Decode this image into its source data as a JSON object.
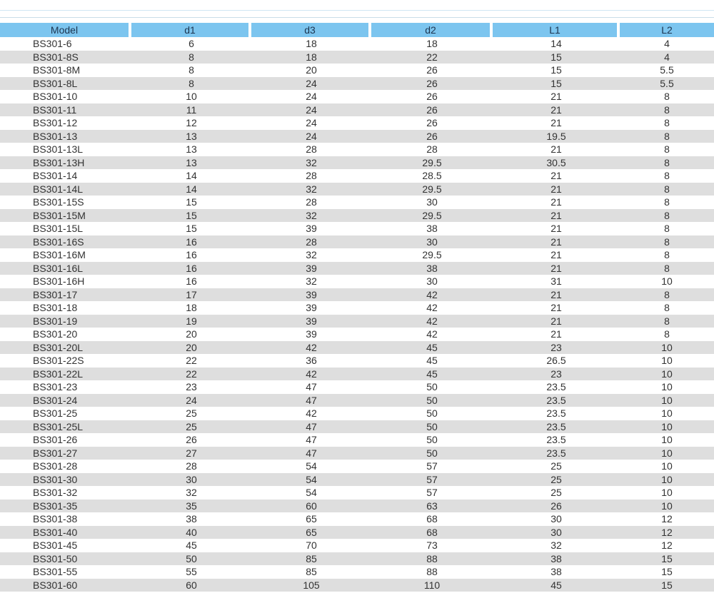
{
  "table": {
    "columns": [
      "Model",
      "d1",
      "d3",
      "d2",
      "L1",
      "L2"
    ],
    "rows": [
      [
        "BS301-6",
        "6",
        "18",
        "18",
        "14",
        "4"
      ],
      [
        "BS301-8S",
        "8",
        "18",
        "22",
        "15",
        "4"
      ],
      [
        "BS301-8M",
        "8",
        "20",
        "26",
        "15",
        "5.5"
      ],
      [
        "BS301-8L",
        "8",
        "24",
        "26",
        "15",
        "5.5"
      ],
      [
        "BS301-10",
        "10",
        "24",
        "26",
        "21",
        "8"
      ],
      [
        "BS301-11",
        "11",
        "24",
        "26",
        "21",
        "8"
      ],
      [
        "BS301-12",
        "12",
        "24",
        "26",
        "21",
        "8"
      ],
      [
        "BS301-13",
        "13",
        "24",
        "26",
        "19.5",
        "8"
      ],
      [
        "BS301-13L",
        "13",
        "28",
        "28",
        "21",
        "8"
      ],
      [
        "BS301-13H",
        "13",
        "32",
        "29.5",
        "30.5",
        "8"
      ],
      [
        "BS301-14",
        "14",
        "28",
        "28.5",
        "21",
        "8"
      ],
      [
        "BS301-14L",
        "14",
        "32",
        "29.5",
        "21",
        "8"
      ],
      [
        "BS301-15S",
        "15",
        "28",
        "30",
        "21",
        "8"
      ],
      [
        "BS301-15M",
        "15",
        "32",
        "29.5",
        "21",
        "8"
      ],
      [
        "BS301-15L",
        "15",
        "39",
        "38",
        "21",
        "8"
      ],
      [
        "BS301-16S",
        "16",
        "28",
        "30",
        "21",
        "8"
      ],
      [
        "BS301-16M",
        "16",
        "32",
        "29.5",
        "21",
        "8"
      ],
      [
        "BS301-16L",
        "16",
        "39",
        "38",
        "21",
        "8"
      ],
      [
        "BS301-16H",
        "16",
        "32",
        "30",
        "31",
        "10"
      ],
      [
        "BS301-17",
        "17",
        "39",
        "42",
        "21",
        "8"
      ],
      [
        "BS301-18",
        "18",
        "39",
        "42",
        "21",
        "8"
      ],
      [
        "BS301-19",
        "19",
        "39",
        "42",
        "21",
        "8"
      ],
      [
        "BS301-20",
        "20",
        "39",
        "42",
        "21",
        "8"
      ],
      [
        "BS301-20L",
        "20",
        "42",
        "45",
        "23",
        "10"
      ],
      [
        "BS301-22S",
        "22",
        "36",
        "45",
        "26.5",
        "10"
      ],
      [
        "BS301-22L",
        "22",
        "42",
        "45",
        "23",
        "10"
      ],
      [
        "BS301-23",
        "23",
        "47",
        "50",
        "23.5",
        "10"
      ],
      [
        "BS301-24",
        "24",
        "47",
        "50",
        "23.5",
        "10"
      ],
      [
        "BS301-25",
        "25",
        "42",
        "50",
        "23.5",
        "10"
      ],
      [
        "BS301-25L",
        "25",
        "47",
        "50",
        "23.5",
        "10"
      ],
      [
        "BS301-26",
        "26",
        "47",
        "50",
        "23.5",
        "10"
      ],
      [
        "BS301-27",
        "27",
        "47",
        "50",
        "23.5",
        "10"
      ],
      [
        "BS301-28",
        "28",
        "54",
        "57",
        "25",
        "10"
      ],
      [
        "BS301-30",
        "30",
        "54",
        "57",
        "25",
        "10"
      ],
      [
        "BS301-32",
        "32",
        "54",
        "57",
        "25",
        "10"
      ],
      [
        "BS301-35",
        "35",
        "60",
        "63",
        "26",
        "10"
      ],
      [
        "BS301-38",
        "38",
        "65",
        "68",
        "30",
        "12"
      ],
      [
        "BS301-40",
        "40",
        "65",
        "68",
        "30",
        "12"
      ],
      [
        "BS301-45",
        "45",
        "70",
        "73",
        "32",
        "12"
      ],
      [
        "BS301-50",
        "50",
        "85",
        "88",
        "38",
        "15"
      ],
      [
        "BS301-55",
        "55",
        "85",
        "88",
        "38",
        "15"
      ],
      [
        "BS301-60",
        "60",
        "105",
        "110",
        "45",
        "15"
      ]
    ]
  },
  "colors": {
    "header_bg": "#7cc5ef",
    "header_text": "#1d3550",
    "stripe": "#dedede",
    "text": "#333333"
  }
}
